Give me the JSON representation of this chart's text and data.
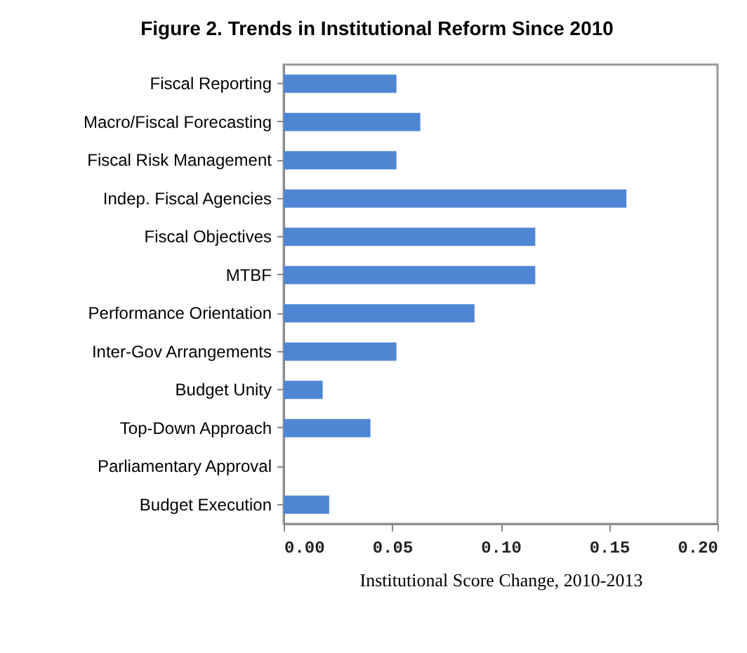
{
  "chart_data": {
    "type": "bar",
    "orientation": "horizontal",
    "title": "Figure 2. Trends in Institutional Reform Since 2010",
    "xlabel": "Institutional Score Change, 2010-2013",
    "categories": [
      "Fiscal Reporting",
      "Macro/Fiscal Forecasting",
      "Fiscal Risk Management",
      "Indep. Fiscal Agencies",
      "Fiscal Objectives",
      "MTBF",
      "Performance Orientation",
      "Inter-Gov Arrangements",
      "Budget Unity",
      "Top-Down Approach",
      "Parliamentary Approval",
      "Budget Execution"
    ],
    "values": [
      0.052,
      0.063,
      0.052,
      0.158,
      0.116,
      0.116,
      0.088,
      0.052,
      0.018,
      0.04,
      0,
      0.021
    ],
    "color": "#4f86d4",
    "xlim": [
      0,
      0.2
    ],
    "xticks": [
      {
        "value": 0,
        "label": "0.00"
      },
      {
        "value": 0.05,
        "label": "0.05"
      },
      {
        "value": 0.1,
        "label": "0.10"
      },
      {
        "value": 0.15,
        "label": "0.15"
      },
      {
        "value": 0.2,
        "label": "0.20"
      }
    ],
    "grid": false
  }
}
